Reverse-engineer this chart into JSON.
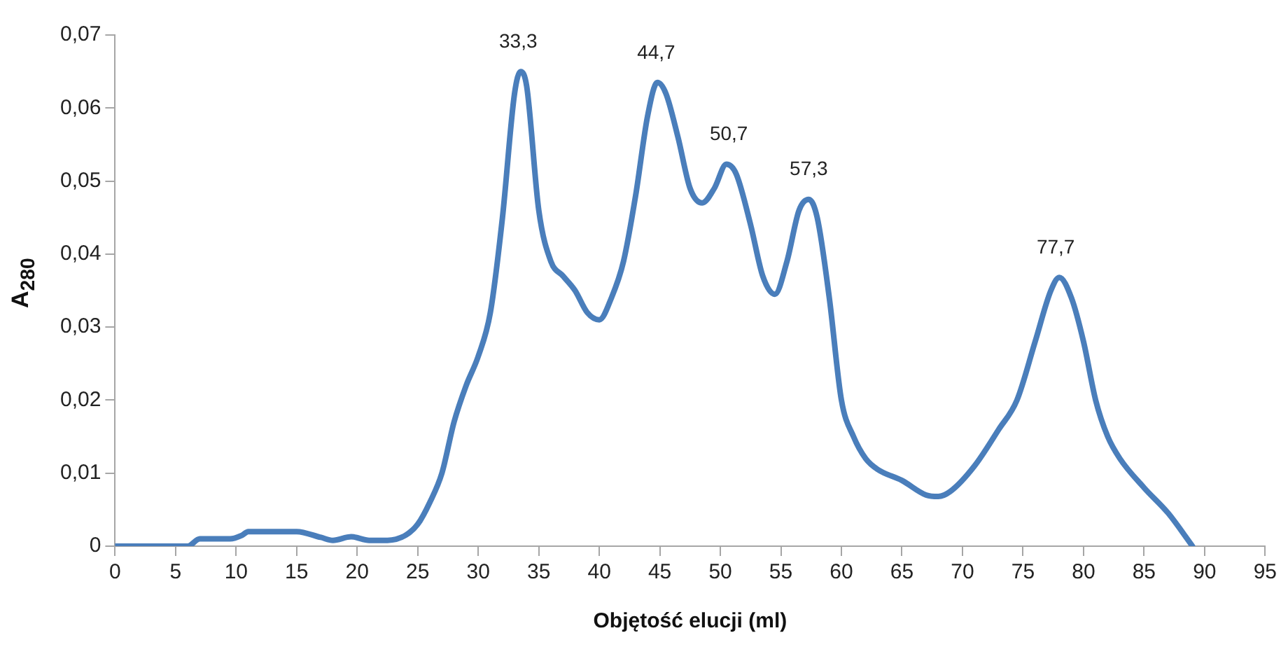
{
  "chart_data": {
    "type": "line",
    "xlabel": "Objętość elucji (ml)",
    "ylabel": "A$_{280}$",
    "x": [
      0,
      6,
      7,
      9.5,
      10.5,
      11,
      15,
      17,
      18,
      19.5,
      21,
      22.5,
      24,
      25,
      26,
      27,
      28,
      29,
      30,
      31,
      32,
      33,
      33.5,
      34,
      35,
      36,
      37,
      38,
      39,
      40,
      41,
      42,
      43,
      44,
      44.8,
      45.5,
      46.5,
      47.5,
      48.5,
      49.5,
      50.5,
      51.3,
      52.5,
      53.5,
      54.5,
      55.5,
      56.5,
      57.3,
      58,
      59,
      60,
      61,
      62,
      63,
      65,
      67,
      68,
      69,
      71,
      73,
      74.5,
      76,
      77.3,
      78,
      79,
      80,
      81,
      82,
      83,
      85,
      87,
      89
    ],
    "series": [
      {
        "color": "#4a7ebb",
        "values": [
          0,
          0,
          0.001,
          0.001,
          0.0015,
          0.002,
          0.002,
          0.0012,
          0.0008,
          0.0013,
          0.0008,
          0.0008,
          0.0015,
          0.003,
          0.006,
          0.01,
          0.017,
          0.022,
          0.026,
          0.032,
          0.045,
          0.062,
          0.065,
          0.063,
          0.046,
          0.039,
          0.037,
          0.035,
          0.032,
          0.031,
          0.034,
          0.039,
          0.048,
          0.059,
          0.0635,
          0.062,
          0.056,
          0.049,
          0.047,
          0.049,
          0.0523,
          0.051,
          0.044,
          0.037,
          0.0345,
          0.039,
          0.046,
          0.0475,
          0.045,
          0.034,
          0.02,
          0.015,
          0.012,
          0.0105,
          0.009,
          0.007,
          0.0068,
          0.0075,
          0.011,
          0.016,
          0.02,
          0.028,
          0.035,
          0.0368,
          0.034,
          0.028,
          0.02,
          0.015,
          0.012,
          0.008,
          0.0045,
          0
        ]
      }
    ],
    "xlim": [
      0,
      95
    ],
    "xticks": [
      0,
      5,
      10,
      15,
      20,
      25,
      30,
      35,
      40,
      45,
      50,
      55,
      60,
      65,
      70,
      75,
      80,
      85,
      90,
      95
    ],
    "ylim": [
      0,
      0.07
    ],
    "yticks": [
      {
        "value": 0,
        "label": "0"
      },
      {
        "value": 0.01,
        "label": "0,01"
      },
      {
        "value": 0.02,
        "label": "0,02"
      },
      {
        "value": 0.03,
        "label": "0,03"
      },
      {
        "value": 0.04,
        "label": "0,04"
      },
      {
        "value": 0.05,
        "label": "0,05"
      },
      {
        "value": 0.06,
        "label": "0,06"
      },
      {
        "value": 0.07,
        "label": "0,07"
      }
    ],
    "annotations": [
      {
        "text": "33,3",
        "x": 33.3,
        "y": 0.065
      },
      {
        "text": "44,7",
        "x": 44.7,
        "y": 0.0635
      },
      {
        "text": "50,7",
        "x": 50.7,
        "y": 0.0523
      },
      {
        "text": "57,3",
        "x": 57.3,
        "y": 0.0475
      },
      {
        "text": "77,7",
        "x": 77.7,
        "y": 0.0368
      }
    ],
    "grid": false,
    "legend": false,
    "marker": "none",
    "line_style": "solid"
  }
}
